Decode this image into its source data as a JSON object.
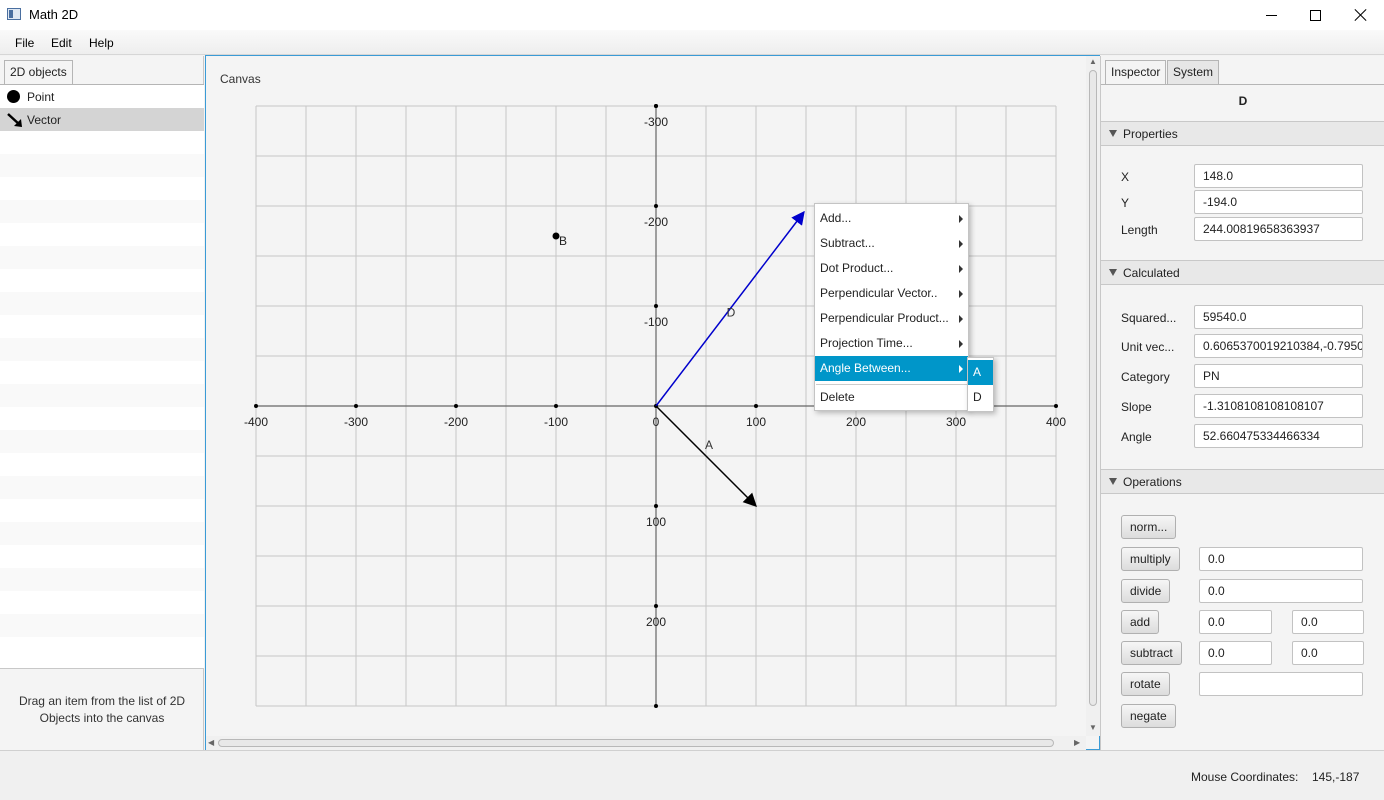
{
  "window": {
    "title": "Math 2D"
  },
  "menubar": {
    "items": [
      "File",
      "Edit",
      "Help"
    ]
  },
  "left_panel": {
    "tab": "2D objects",
    "items": [
      {
        "label": "Point",
        "icon": "point-icon"
      },
      {
        "label": "Vector",
        "icon": "vector-icon",
        "selected": true
      }
    ],
    "hint": "Drag an item from the list of 2D Objects into the canvas"
  },
  "canvas": {
    "label": "Canvas",
    "x_ticks": [
      "-400",
      "-300",
      "-200",
      "-100",
      "0",
      "100",
      "200",
      "300",
      "400"
    ],
    "y_ticks": [
      "-300",
      "-200",
      "-100",
      "100",
      "200"
    ],
    "points": [
      {
        "name": "B",
        "x": -100,
        "y": -170
      }
    ],
    "vectors": [
      {
        "name": "D",
        "x": 148,
        "y": -194,
        "color": "#0000cc"
      },
      {
        "name": "A",
        "x": 100,
        "y": 100,
        "color": "#000000"
      }
    ]
  },
  "context_menu": {
    "items": [
      "Add...",
      "Subtract...",
      "Dot Product...",
      "Perpendicular Vector..",
      "Perpendicular Product...",
      "Projection Time...",
      "Angle Between...",
      "Delete"
    ],
    "active": "Angle Between...",
    "submenu": [
      "A",
      "D"
    ]
  },
  "inspector": {
    "tabs": [
      "Inspector",
      "System"
    ],
    "object_name": "D",
    "properties": {
      "title": "Properties",
      "x_label": "X",
      "x": "148.0",
      "y_label": "Y",
      "y": "-194.0",
      "length_label": "Length",
      "length": "244.00819658363937"
    },
    "calculated": {
      "title": "Calculated",
      "squared_label": "Squared...",
      "squared": "59540.0",
      "unit_label": "Unit vec...",
      "unit": "0.6065370019210384,-0.7950",
      "category_label": "Category",
      "category": "PN",
      "slope_label": "Slope",
      "slope": "-1.3108108108108107",
      "angle_label": "Angle",
      "angle": "52.660475334466334"
    },
    "operations": {
      "title": "Operations",
      "norm": "norm...",
      "multiply": "multiply",
      "multiply_value": "0.0",
      "divide": "divide",
      "divide_value": "0.0",
      "add": "add",
      "add_x": "0.0",
      "add_y": "0.0",
      "subtract": "subtract",
      "subtract_x": "0.0",
      "subtract_y": "0.0",
      "rotate": "rotate",
      "rotate_value": "",
      "negate": "negate"
    }
  },
  "status": {
    "label": "Mouse Coordinates:",
    "value": "145,-187"
  }
}
